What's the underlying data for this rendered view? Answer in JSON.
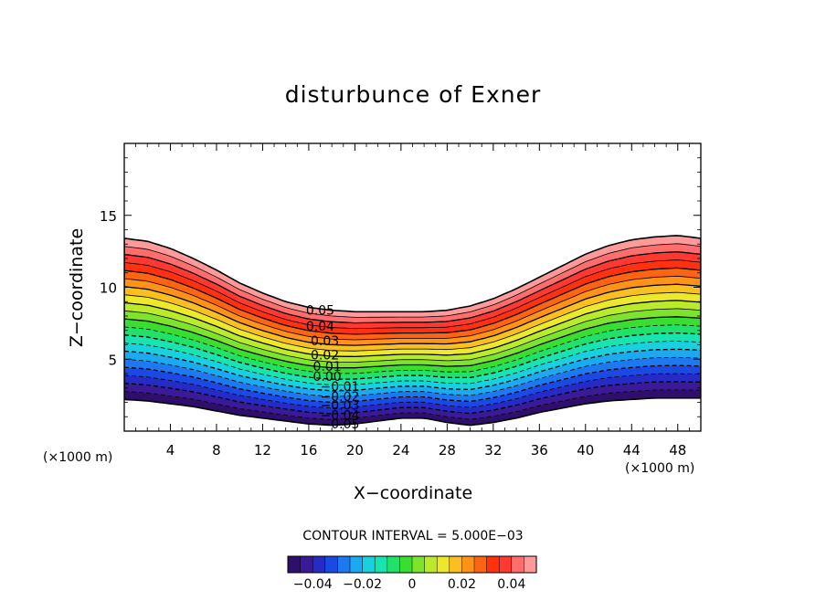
{
  "chart_data": {
    "type": "contour",
    "title": "disturbunce of Exner",
    "xlabel": "X−coordinate",
    "ylabel": "Z−coordinate",
    "x_unit": "(×1000 m)",
    "x_unit_right": "(×1000 m)",
    "xlim": [
      0,
      50
    ],
    "ylim": [
      0,
      20
    ],
    "x_ticks": [
      4,
      8,
      12,
      16,
      20,
      24,
      28,
      32,
      36,
      40,
      44,
      48
    ],
    "x_tick_labels": [
      "4",
      "8",
      "12",
      "16",
      "20",
      "24",
      "28",
      "32",
      "36",
      "40",
      "44",
      "48"
    ],
    "y_ticks": [
      5,
      10,
      15
    ],
    "y_tick_labels": [
      "5",
      "10",
      "15"
    ],
    "contour_interval_text": "CONTOUR INTERVAL = 5.000E−03",
    "contour_interval": 0.005,
    "value_range": [
      -0.05,
      0.05
    ],
    "field_top_z": {
      "x": [
        0,
        2,
        4,
        6,
        8,
        10,
        12,
        14,
        16,
        18,
        20,
        22,
        24,
        26,
        28,
        30,
        32,
        34,
        36,
        38,
        40,
        42,
        44,
        46,
        48,
        50
      ],
      "z": [
        13.4,
        13.2,
        12.7,
        12.0,
        11.2,
        10.3,
        9.6,
        9.0,
        8.6,
        8.4,
        8.3,
        8.3,
        8.3,
        8.3,
        8.4,
        8.7,
        9.2,
        9.9,
        10.7,
        11.5,
        12.3,
        12.9,
        13.3,
        13.5,
        13.6,
        13.4
      ]
    },
    "field_bottom_z": {
      "x": [
        0,
        2,
        4,
        6,
        8,
        10,
        12,
        14,
        16,
        18,
        20,
        22,
        24,
        26,
        28,
        30,
        32,
        34,
        36,
        38,
        40,
        42,
        44,
        46,
        48,
        50
      ],
      "z": [
        2.2,
        2.1,
        1.9,
        1.7,
        1.4,
        1.1,
        0.9,
        0.7,
        0.5,
        0.4,
        0.5,
        0.7,
        0.9,
        0.9,
        0.6,
        0.4,
        0.6,
        0.9,
        1.3,
        1.6,
        1.9,
        2.1,
        2.2,
        2.3,
        2.3,
        2.3
      ]
    },
    "contour_labels": [
      {
        "text": "0.05",
        "x": 17.0,
        "z": 8.4
      },
      {
        "text": "0.04",
        "x": 17.0,
        "z": 7.3
      },
      {
        "text": "0.03",
        "x": 17.4,
        "z": 6.3
      },
      {
        "text": "0.02",
        "x": 17.4,
        "z": 5.3
      },
      {
        "text": "0.01",
        "x": 17.6,
        "z": 4.5
      },
      {
        "text": "0.00",
        "x": 17.6,
        "z": 3.8
      },
      {
        "text": "−0.01",
        "x": 18.7,
        "z": 3.1
      },
      {
        "text": "−0.02",
        "x": 18.7,
        "z": 2.4
      },
      {
        "text": "−0.03",
        "x": 18.7,
        "z": 1.8
      },
      {
        "text": "−0.04",
        "x": 18.7,
        "z": 1.1
      },
      {
        "text": "−0.05",
        "x": 18.7,
        "z": 0.5
      }
    ],
    "colorbar": {
      "tick_values": [
        -0.04,
        -0.02,
        0,
        0.02,
        0.04
      ],
      "tick_labels": [
        "−0.04",
        "−0.02",
        "0",
        "0.02",
        "0.04"
      ]
    },
    "colors": {
      "scale": [
        "#2a0a55",
        "#3a1a99",
        "#1a35e0",
        "#1e7df0",
        "#19c9ee",
        "#18e8a6",
        "#28dc33",
        "#8fe52a",
        "#e9f12d",
        "#ffb01d",
        "#ff6a12",
        "#ff1b10",
        "#ff6b6b",
        "#ffb0b0"
      ],
      "line": "#000000"
    }
  }
}
